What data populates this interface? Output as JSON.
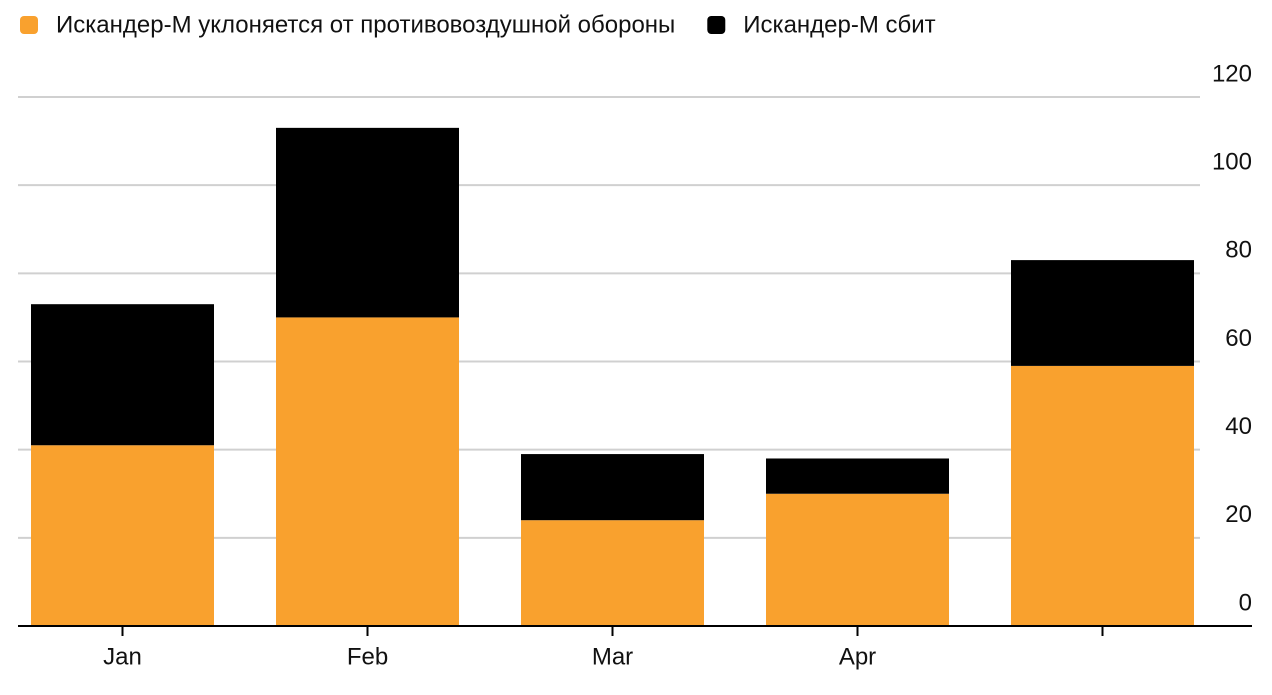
{
  "chart_data": {
    "type": "bar",
    "stacked": true,
    "categories": [
      "Jan",
      "Feb",
      "Mar",
      "Apr",
      null
    ],
    "series": [
      {
        "name": "Искандер-М уклоняется от противовоздушной обороны",
        "color": "#f9a12e",
        "values": [
          41,
          70,
          24,
          30,
          59
        ]
      },
      {
        "name": "Искандер-М сбит",
        "color": "#000000",
        "values": [
          32,
          43,
          15,
          8,
          24
        ]
      }
    ],
    "ylim": [
      0,
      120
    ],
    "yticks": [
      0,
      20,
      40,
      60,
      80,
      100,
      120
    ],
    "grid": true,
    "legend": "top-left"
  }
}
